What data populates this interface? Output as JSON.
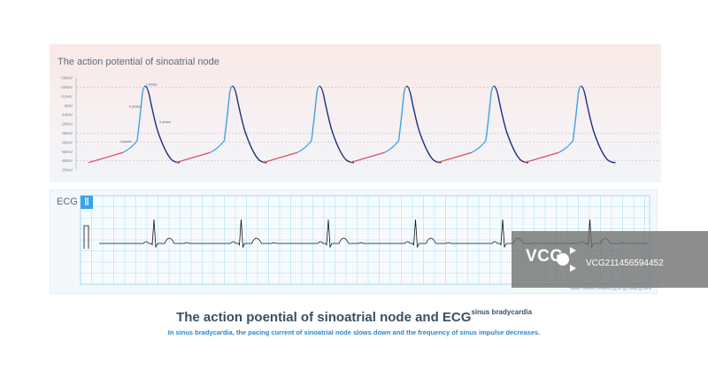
{
  "action_potential": {
    "title": "The action potential of sinoatrial node",
    "y_ticks": [
      "+30mV",
      "+20mV",
      "+10mV",
      "0mV",
      "-10mV",
      "-20mV",
      "-30mV",
      "-40mV",
      "-50mV",
      "-60mV",
      "-70mV"
    ],
    "y_tick_values": [
      30,
      20,
      10,
      0,
      -10,
      -20,
      -30,
      -40,
      -50,
      -60,
      -70
    ],
    "y_range": [
      -70,
      30
    ],
    "dashed_levels": [
      20,
      -30,
      -40,
      -60
    ],
    "cycles": 6,
    "phase_labels": {
      "phase0": "0 phase",
      "phase3": "3 phase",
      "phase4": "4 phase",
      "phase_peak": "1 phase"
    },
    "colors": {
      "phase4_slow": "#e0455a",
      "phase4_fast": "#3aa3e2",
      "upstroke": "#3aa3e2",
      "repolarization": "#1b2f80"
    }
  },
  "ecg": {
    "label": "ECG",
    "lead": "Ⅱ",
    "beats": 6,
    "footnote": "Speed: 25mm/s  10mm/mV  ||||  AC  ||||  unfold  ||||  50Hz",
    "grid_color": "#9cd3ef",
    "trace_color": "#111111"
  },
  "caption": {
    "title": "The action poential of sinoatrial node and ECG",
    "title_superscript": "sinus bradycardia",
    "subtitle": "In sinus bradycardia, the pacing current of sinoatrial node slows down and the frequency of sinus impulse decreases."
  },
  "watermark": {
    "logo": "VCG",
    "id": "VCG211456594452"
  }
}
